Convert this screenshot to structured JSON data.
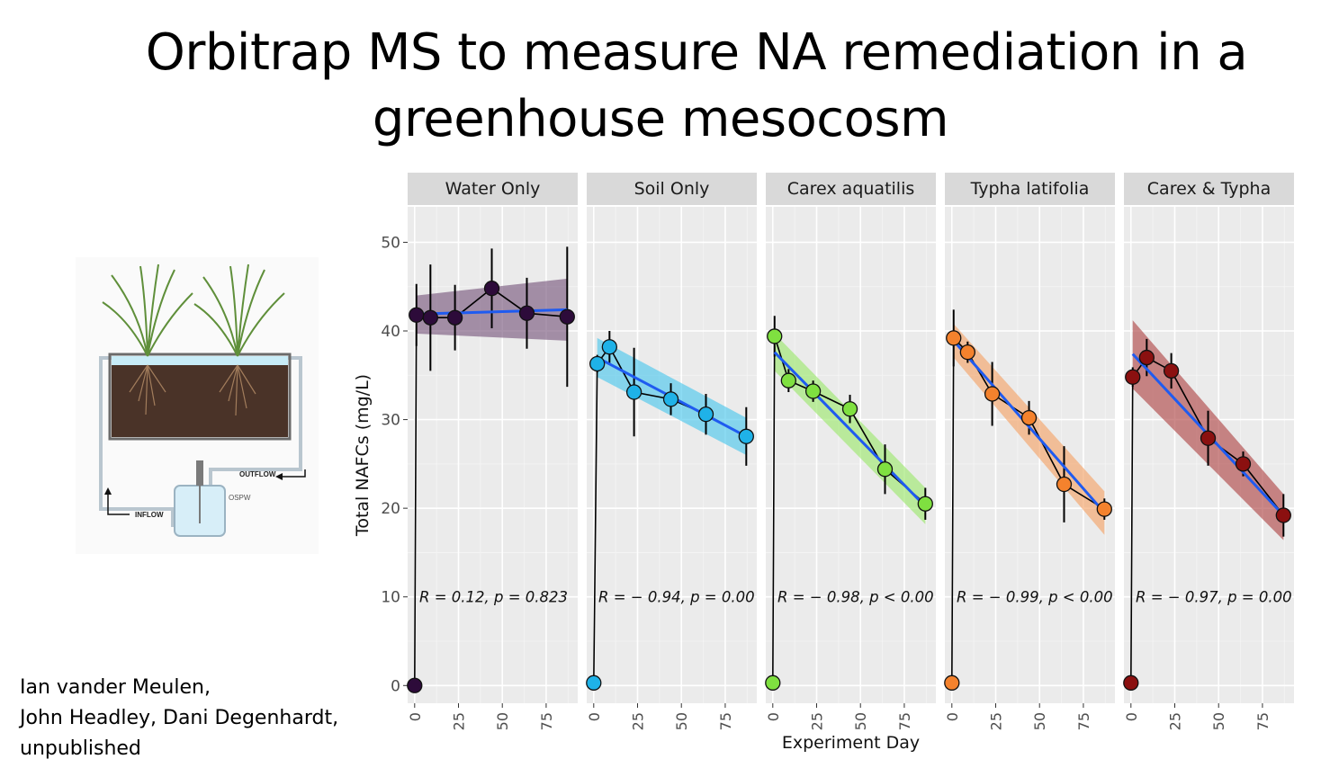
{
  "slide": {
    "title_line1": "Orbitrap MS  to measure NA remediation in a",
    "title_line2": "greenhouse mesocosm",
    "authors": [
      "Ian vander Meulen,",
      "John Headley, Dani Degenhardt,",
      "unpublished"
    ]
  },
  "illustration": {
    "labels": {
      "outflow": "OUTFLOW",
      "inflow": "INFLOW",
      "ospw": "OSPW"
    },
    "colors": {
      "water": "#c8ecf7",
      "soil": "#4a3328",
      "grass": "#5f8f3a",
      "frame": "#6b6b6b",
      "pipe": "#b9c6cf"
    }
  },
  "chart_data": {
    "type": "scatter",
    "ylabel": "Total NAFCs (mg/L)",
    "xlabel": "Experiment Day",
    "ylim": [
      -2,
      54
    ],
    "y_ticks": [
      0,
      10,
      20,
      30,
      40,
      50
    ],
    "y_tick_labels": [
      "0",
      "10",
      "20",
      "30",
      "40",
      "50"
    ],
    "xlim": [
      -4,
      93
    ],
    "x_ticks": [
      0,
      25,
      50,
      75
    ],
    "x_tick_labels": [
      "0",
      "25",
      "50",
      "75"
    ],
    "grid": true,
    "panel_background": "#ebebeb",
    "strip_background": "#d9d9d9",
    "fit_line_color": "#1f5bf0",
    "panels": [
      {
        "name": "Water Only",
        "color": "#2d0b3a",
        "band_color": "#7b5b80",
        "points": [
          {
            "x": 0,
            "y": 0,
            "err": 0
          },
          {
            "x": 1,
            "y": 41.8,
            "err": 3.5
          },
          {
            "x": 9,
            "y": 41.5,
            "err": 6
          },
          {
            "x": 23,
            "y": 41.5,
            "err": 3.7
          },
          {
            "x": 44,
            "y": 44.8,
            "err": 4.5
          },
          {
            "x": 64,
            "y": 42,
            "err": 4
          },
          {
            "x": 87,
            "y": 41.6,
            "err": 7.9
          }
        ],
        "fit": {
          "x": [
            1,
            87
          ],
          "y": [
            41.9,
            42.4
          ]
        },
        "band": {
          "lower": [
            39.7,
            38.9
          ],
          "upper": [
            44.0,
            45.9
          ]
        },
        "stat_text": "R = 0.12, p = 0.823"
      },
      {
        "name": "Soil Only",
        "color": "#1fb2e8",
        "band_color": "#4fc8ec",
        "points": [
          {
            "x": 0,
            "y": 0.3,
            "err": 0
          },
          {
            "x": 2,
            "y": 36.3,
            "err": 1
          },
          {
            "x": 9,
            "y": 38.2,
            "err": 1.8
          },
          {
            "x": 23,
            "y": 33.1,
            "err": 5
          },
          {
            "x": 44,
            "y": 32.3,
            "err": 1.8
          },
          {
            "x": 64,
            "y": 30.6,
            "err": 2.3
          },
          {
            "x": 87,
            "y": 28.1,
            "err": 3.3
          }
        ],
        "fit": {
          "x": [
            2,
            87
          ],
          "y": [
            37.0,
            28.1
          ]
        },
        "band": {
          "lower": [
            34.8,
            26.0
          ],
          "upper": [
            39.2,
            30.2
          ]
        },
        "stat_text": "R = − 0.94, p = 0.00"
      },
      {
        "name": "Carex aquatilis",
        "color": "#7fe040",
        "band_color": "#9ee870",
        "points": [
          {
            "x": 0,
            "y": 0.3,
            "err": 0
          },
          {
            "x": 1,
            "y": 39.4,
            "err": 2.3
          },
          {
            "x": 9,
            "y": 34.4,
            "err": 1.3
          },
          {
            "x": 23,
            "y": 33.2,
            "err": 1.2
          },
          {
            "x": 44,
            "y": 31.2,
            "err": 1.6
          },
          {
            "x": 64,
            "y": 24.4,
            "err": 2.8
          },
          {
            "x": 87,
            "y": 20.5,
            "err": 1.8
          }
        ],
        "fit": {
          "x": [
            1,
            87
          ],
          "y": [
            37.6,
            20.2
          ]
        },
        "band": {
          "lower": [
            35.5,
            18.2
          ],
          "upper": [
            39.7,
            22.3
          ]
        },
        "stat_text": "R = − 0.98, p < 0.00"
      },
      {
        "name": "Typha latifolia",
        "color": "#f4822d",
        "band_color": "#f5a46a",
        "points": [
          {
            "x": 0,
            "y": 0.3,
            "err": 0
          },
          {
            "x": 1,
            "y": 39.2,
            "err": 3.2
          },
          {
            "x": 9,
            "y": 37.6,
            "err": 1.2
          },
          {
            "x": 23,
            "y": 32.9,
            "err": 3.6
          },
          {
            "x": 44,
            "y": 30.2,
            "err": 1.9
          },
          {
            "x": 64,
            "y": 22.7,
            "err": 4.3
          },
          {
            "x": 87,
            "y": 19.9,
            "err": 1.2
          }
        ],
        "fit": {
          "x": [
            1,
            87
          ],
          "y": [
            38.9,
            19.5
          ]
        },
        "band": {
          "lower": [
            37.0,
            17.0
          ],
          "upper": [
            40.8,
            21.9
          ]
        },
        "stat_text": "R = − 0.99, p < 0.00"
      },
      {
        "name": "Carex & Typha",
        "color": "#8b1010",
        "band_color": "#b04a4a",
        "points": [
          {
            "x": 0,
            "y": 0.3,
            "err": 0
          },
          {
            "x": 1,
            "y": 34.8,
            "err": 1.1
          },
          {
            "x": 9,
            "y": 37,
            "err": 2.1
          },
          {
            "x": 23,
            "y": 35.5,
            "err": 2
          },
          {
            "x": 44,
            "y": 27.9,
            "err": 3.1
          },
          {
            "x": 64,
            "y": 25,
            "err": 1.4
          },
          {
            "x": 87,
            "y": 19.2,
            "err": 2.4
          }
        ],
        "fit": {
          "x": [
            1,
            87
          ],
          "y": [
            37.4,
            19.2
          ]
        },
        "band": {
          "lower": [
            33.5,
            16.4
          ],
          "upper": [
            41.2,
            21.6
          ]
        },
        "stat_text": "R = − 0.97, p = 0.00"
      }
    ]
  }
}
